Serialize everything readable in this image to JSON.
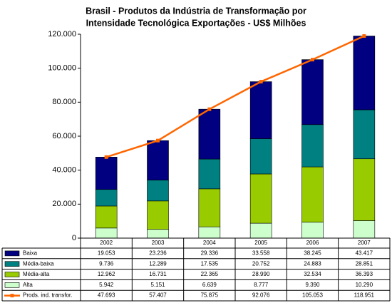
{
  "chart_data": {
    "type": "bar",
    "stacked": true,
    "title": [
      "Brasil - Produtos da Indústria de Transformação por",
      "Intensidade Tecnológica Exportações - US$ Milhões"
    ],
    "categories": [
      "2002",
      "2003",
      "2004",
      "2005",
      "2006",
      "2007"
    ],
    "ylim": [
      0,
      120000
    ],
    "yticks": [
      0,
      {
        "value": 20000,
        "label": "20.000"
      },
      {
        "value": 40000,
        "label": "40.000"
      },
      {
        "value": 60000,
        "label": "60.000"
      },
      {
        "value": 80000,
        "label": "80.000"
      },
      {
        "value": 100000,
        "label": "100.000"
      },
      {
        "value": 120000,
        "label": "120.000"
      }
    ],
    "series": [
      {
        "name": "Baixa",
        "color": "#000080",
        "values": [
          19053,
          23236,
          29336,
          33558,
          38245,
          43417
        ],
        "value_labels": [
          "19.053",
          "23.236",
          "29.336",
          "33.558",
          "38.245",
          "43.417"
        ]
      },
      {
        "name": "Média-baixa",
        "color": "#008080",
        "values": [
          9736,
          12289,
          17535,
          20752,
          24883,
          28851
        ],
        "value_labels": [
          "9.736",
          "12.289",
          "17.535",
          "20.752",
          "24.883",
          "28.851"
        ]
      },
      {
        "name": "Média-alta",
        "color": "#99cc00",
        "values": [
          12962,
          16731,
          22365,
          28990,
          32534,
          36393
        ],
        "value_labels": [
          "12.962",
          "16.731",
          "22.365",
          "28.990",
          "32.534",
          "36.393"
        ]
      },
      {
        "name": "Alta",
        "color": "#ccffcc",
        "values": [
          5942,
          5151,
          6639,
          8777,
          9390,
          10290
        ],
        "value_labels": [
          "5.942",
          "5.151",
          "6.639",
          "8.777",
          "9.390",
          "10.290"
        ]
      },
      {
        "name": "Prods. ind. transfor.",
        "color": "#ff6600",
        "type": "line",
        "values": [
          47693,
          57407,
          75875,
          92076,
          105053,
          118951
        ],
        "value_labels": [
          "47.693",
          "57.407",
          "75.875",
          "92.076",
          "105.053",
          "118.951"
        ]
      }
    ]
  }
}
